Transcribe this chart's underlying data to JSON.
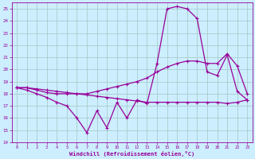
{
  "xlabel": "Windchill (Refroidissement éolien,°C)",
  "xlim": [
    -0.5,
    23.5
  ],
  "ylim": [
    14,
    25.5
  ],
  "xticks": [
    0,
    1,
    2,
    3,
    4,
    5,
    6,
    7,
    8,
    9,
    10,
    11,
    12,
    13,
    14,
    15,
    16,
    17,
    18,
    19,
    20,
    21,
    22,
    23
  ],
  "yticks": [
    14,
    15,
    16,
    17,
    18,
    19,
    20,
    21,
    22,
    23,
    24,
    25
  ],
  "bg_color": "#cceeff",
  "grid_color": "#aacccc",
  "line_color": "#990099",
  "series1_x": [
    0,
    1,
    2,
    3,
    4,
    5,
    6,
    7,
    8,
    9,
    10,
    11,
    12,
    13,
    14,
    15,
    16,
    17,
    18,
    19,
    20,
    21,
    22,
    23
  ],
  "series1_y": [
    18.5,
    18.3,
    18.0,
    17.7,
    17.3,
    17.0,
    16.0,
    14.8,
    16.6,
    15.2,
    17.3,
    16.0,
    17.5,
    17.2,
    20.5,
    25.0,
    25.2,
    25.0,
    24.2,
    19.8,
    19.5,
    21.2,
    18.2,
    17.5
  ],
  "series2_x": [
    0,
    1,
    2,
    3,
    4,
    5,
    6,
    7,
    8,
    9,
    10,
    11,
    12,
    13,
    14,
    15,
    16,
    17,
    18,
    19,
    20,
    21,
    22,
    23
  ],
  "series2_y": [
    18.5,
    18.5,
    18.3,
    18.1,
    18.0,
    18.0,
    18.0,
    18.0,
    18.2,
    18.4,
    18.6,
    18.8,
    19.0,
    19.3,
    19.8,
    20.2,
    20.5,
    20.7,
    20.7,
    20.5,
    20.5,
    21.3,
    20.3,
    18.0
  ],
  "series3_x": [
    0,
    1,
    2,
    3,
    4,
    5,
    6,
    7,
    8,
    9,
    10,
    11,
    12,
    13,
    14,
    15,
    16,
    17,
    18,
    19,
    20,
    21,
    22,
    23
  ],
  "series3_y": [
    18.5,
    18.5,
    18.4,
    18.3,
    18.2,
    18.1,
    18.0,
    17.9,
    17.8,
    17.7,
    17.6,
    17.5,
    17.4,
    17.3,
    17.3,
    17.3,
    17.3,
    17.3,
    17.3,
    17.3,
    17.3,
    17.2,
    17.3,
    17.5
  ]
}
